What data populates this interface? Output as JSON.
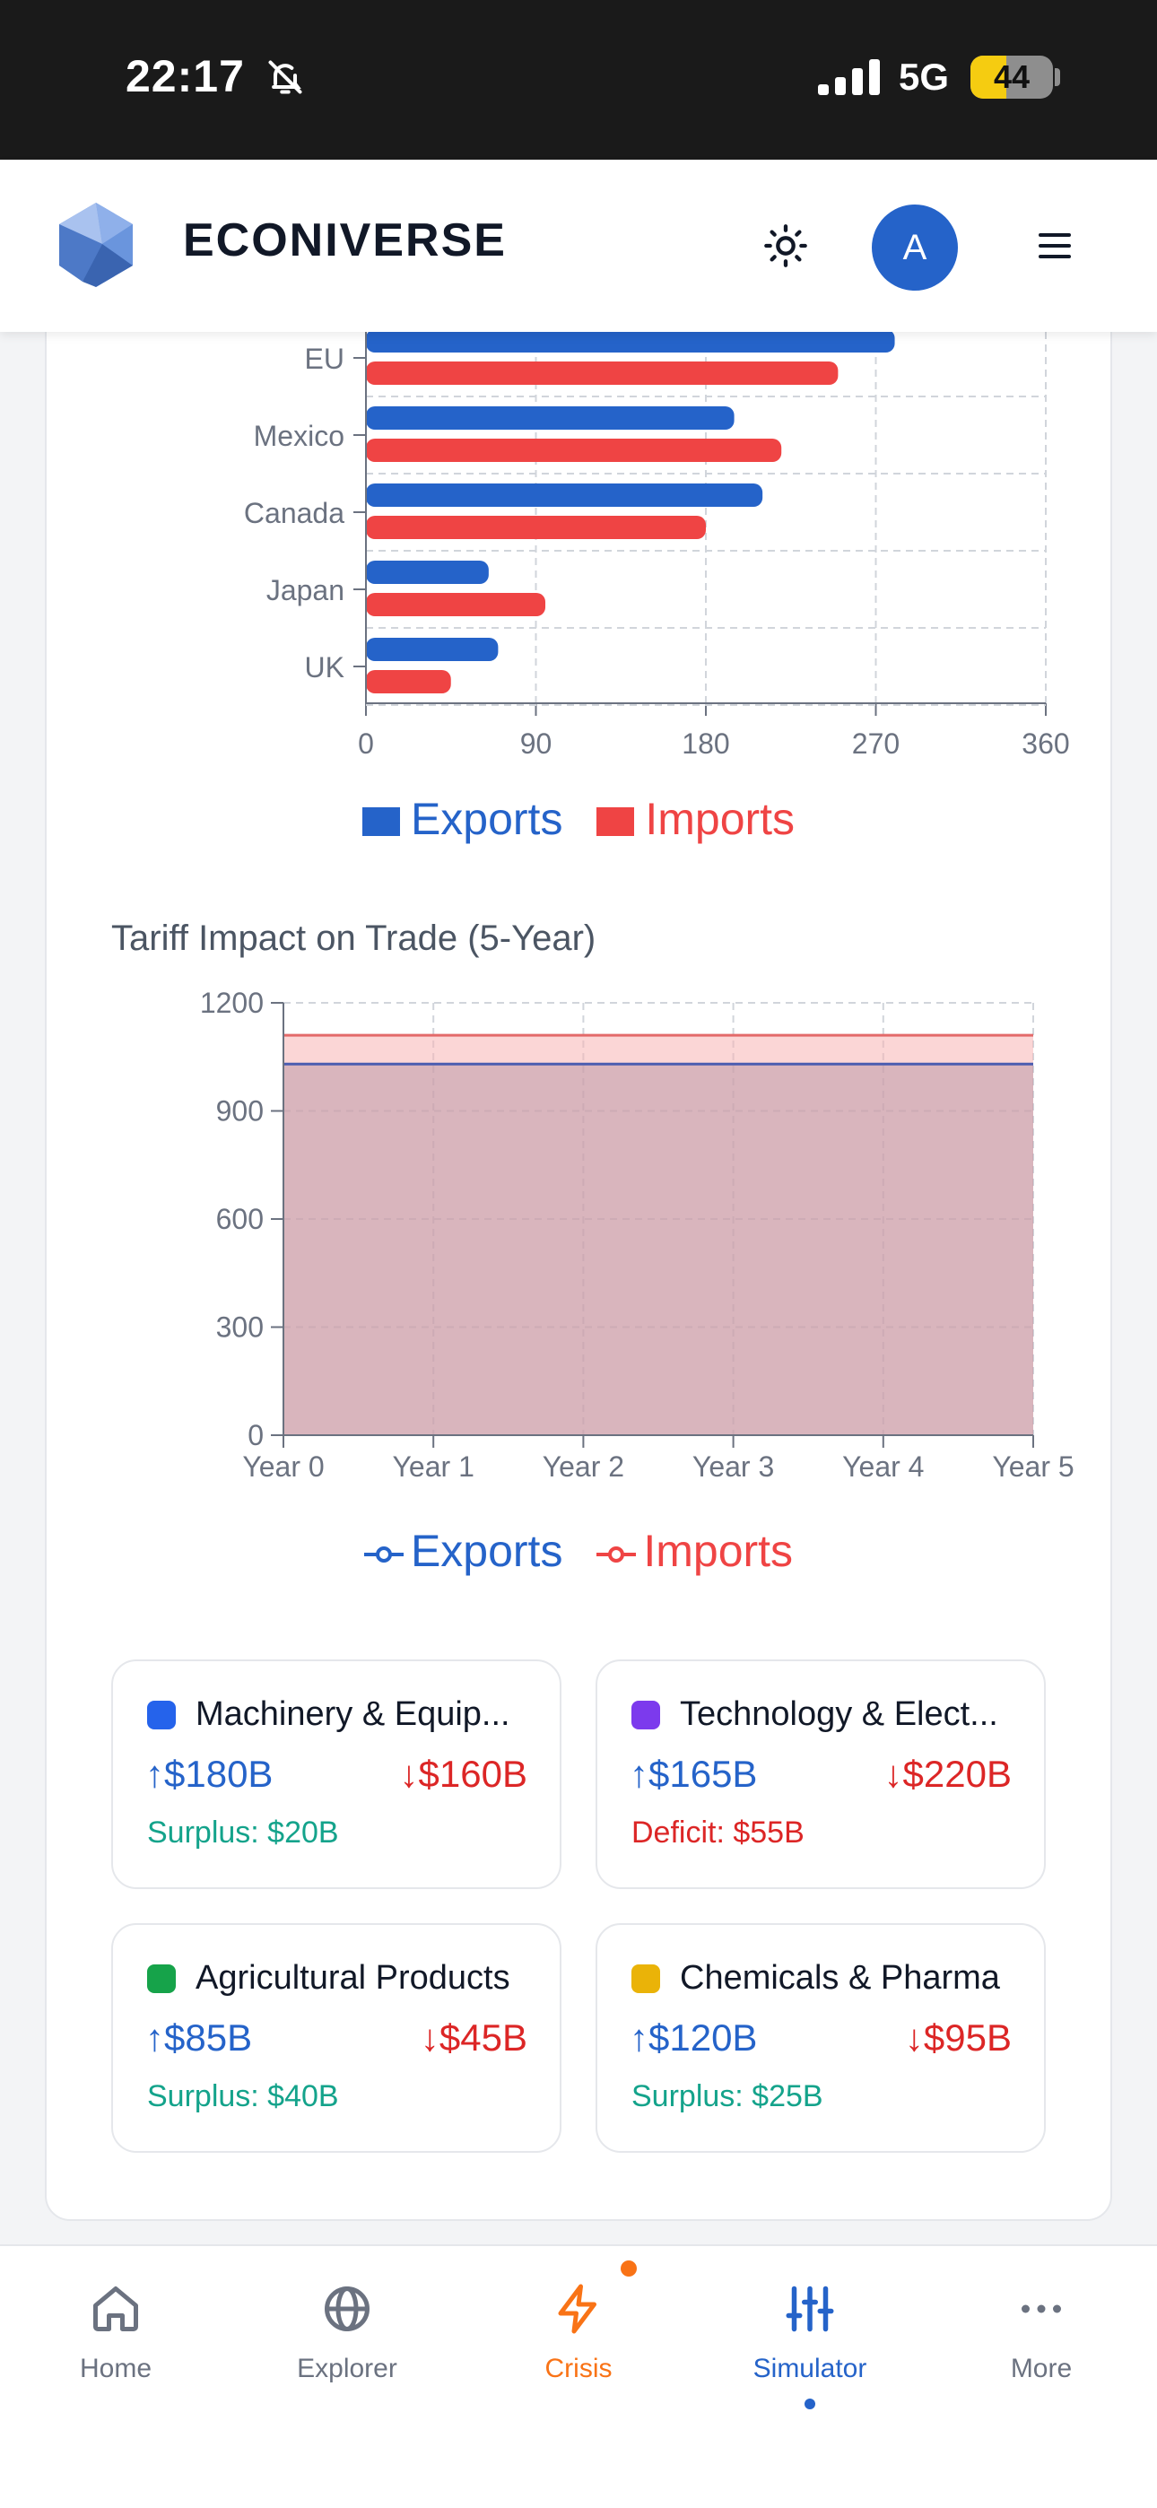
{
  "status": {
    "time": "22:17",
    "network": "5G",
    "battery": "44",
    "battery_level": 0.44
  },
  "header": {
    "brand": "ECONIVERSE",
    "avatar": "A",
    "icons": [
      "logo-icon",
      "sun-icon",
      "menu-icon"
    ]
  },
  "partners_chart": {
    "chart_data": {
      "type": "bar",
      "orientation": "horizontal",
      "categories": [
        "EU",
        "Mexico",
        "Canada",
        "Japan",
        "UK"
      ],
      "series": [
        {
          "name": "Exports",
          "values": [
            280,
            195,
            210,
            65,
            70
          ],
          "color": "#2563c9"
        },
        {
          "name": "Imports",
          "values": [
            250,
            220,
            180,
            95,
            45
          ],
          "color": "#ef4444"
        }
      ],
      "xlim": [
        0,
        360
      ],
      "xticks": [
        "0",
        "90",
        "180",
        "270",
        "360"
      ],
      "grid": true,
      "legend": "bottom"
    },
    "legend": [
      "Exports",
      "Imports"
    ]
  },
  "tariff_chart": {
    "title": "Tariff Impact on Trade (5-Year)",
    "chart_data": {
      "type": "area",
      "categories": [
        "Year 0",
        "Year 1",
        "Year 2",
        "Year 3",
        "Year 4",
        "Year 5"
      ],
      "series": [
        {
          "name": "Exports",
          "values": [
            1030,
            1030,
            1030,
            1030,
            1030,
            1030
          ],
          "color": "#2563c9"
        },
        {
          "name": "Imports",
          "values": [
            1110,
            1110,
            1110,
            1110,
            1110,
            1110
          ],
          "color": "#ef4444"
        }
      ],
      "ylim": [
        0,
        1200
      ],
      "yticks": [
        "0",
        "300",
        "600",
        "900",
        "1200"
      ],
      "grid": true,
      "legend": "bottom"
    },
    "legend": [
      "Exports",
      "Imports"
    ]
  },
  "sectors": [
    {
      "name": "Machinery & Equip...",
      "color": "#2563eb",
      "exports": "↑$180B",
      "imports": "↓$160B",
      "balance": "Surplus: $20B",
      "balance_color": "#14a38b"
    },
    {
      "name": "Technology & Elect...",
      "color": "#7c3aed",
      "exports": "↑$165B",
      "imports": "↓$220B",
      "balance": "Deficit: $55B",
      "balance_color": "#dc2626"
    },
    {
      "name": "Agricultural Products",
      "color": "#16a34a",
      "exports": "↑$85B",
      "imports": "↓$45B",
      "balance": "Surplus: $40B",
      "balance_color": "#14a38b"
    },
    {
      "name": "Chemicals & Pharma",
      "color": "#eab308",
      "exports": "↑$120B",
      "imports": "↓$95B",
      "balance": "Surplus: $25B",
      "balance_color": "#14a38b"
    }
  ],
  "nav": [
    {
      "label": "Home",
      "icon": "home-icon",
      "color": "#6b7280"
    },
    {
      "label": "Explorer",
      "icon": "globe-icon",
      "color": "#6b7280"
    },
    {
      "label": "Crisis",
      "icon": "lightning-icon",
      "color": "#f97316"
    },
    {
      "label": "Simulator",
      "icon": "sliders-icon",
      "color": "#2563c9"
    },
    {
      "label": "More",
      "icon": "more-icon",
      "color": "#6b7280"
    }
  ]
}
